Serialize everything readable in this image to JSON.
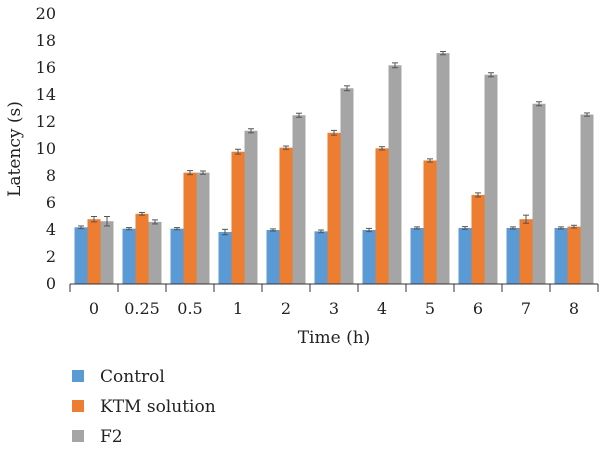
{
  "chart_data": {
    "type": "bar",
    "title": "",
    "xlabel": "Time (h)",
    "ylabel": "Latency (s)",
    "ylim": [
      0,
      20
    ],
    "yticks": [
      "0",
      "2",
      "4",
      "6",
      "8",
      "10",
      "12",
      "14",
      "16",
      "18",
      "20"
    ],
    "categories": [
      "0",
      "0.25",
      "0.5",
      "1",
      "2",
      "3",
      "4",
      "5",
      "6",
      "7",
      "8"
    ],
    "grid": false,
    "error_bars": true,
    "legend_position": "bottom-left",
    "series": [
      {
        "name": "Control",
        "color": "#5b9bd5",
        "values": [
          4.2,
          4.1,
          4.1,
          3.85,
          4.0,
          3.9,
          4.0,
          4.15,
          4.15,
          4.15,
          4.15
        ],
        "errors": [
          0.1,
          0.08,
          0.08,
          0.2,
          0.08,
          0.1,
          0.12,
          0.08,
          0.1,
          0.08,
          0.08
        ]
      },
      {
        "name": "KTM solution",
        "color": "#ed7d31",
        "values": [
          4.8,
          5.2,
          8.25,
          9.8,
          10.1,
          11.2,
          10.05,
          9.15,
          6.6,
          4.8,
          4.25
        ],
        "errors": [
          0.2,
          0.1,
          0.15,
          0.18,
          0.12,
          0.18,
          0.12,
          0.12,
          0.15,
          0.3,
          0.1
        ]
      },
      {
        "name": "F2",
        "color": "#a5a5a5",
        "values": [
          4.65,
          4.6,
          8.25,
          11.35,
          12.5,
          14.5,
          16.2,
          17.1,
          15.5,
          13.35,
          12.55
        ],
        "errors": [
          0.35,
          0.15,
          0.12,
          0.15,
          0.15,
          0.18,
          0.18,
          0.12,
          0.15,
          0.15,
          0.12
        ]
      }
    ]
  }
}
